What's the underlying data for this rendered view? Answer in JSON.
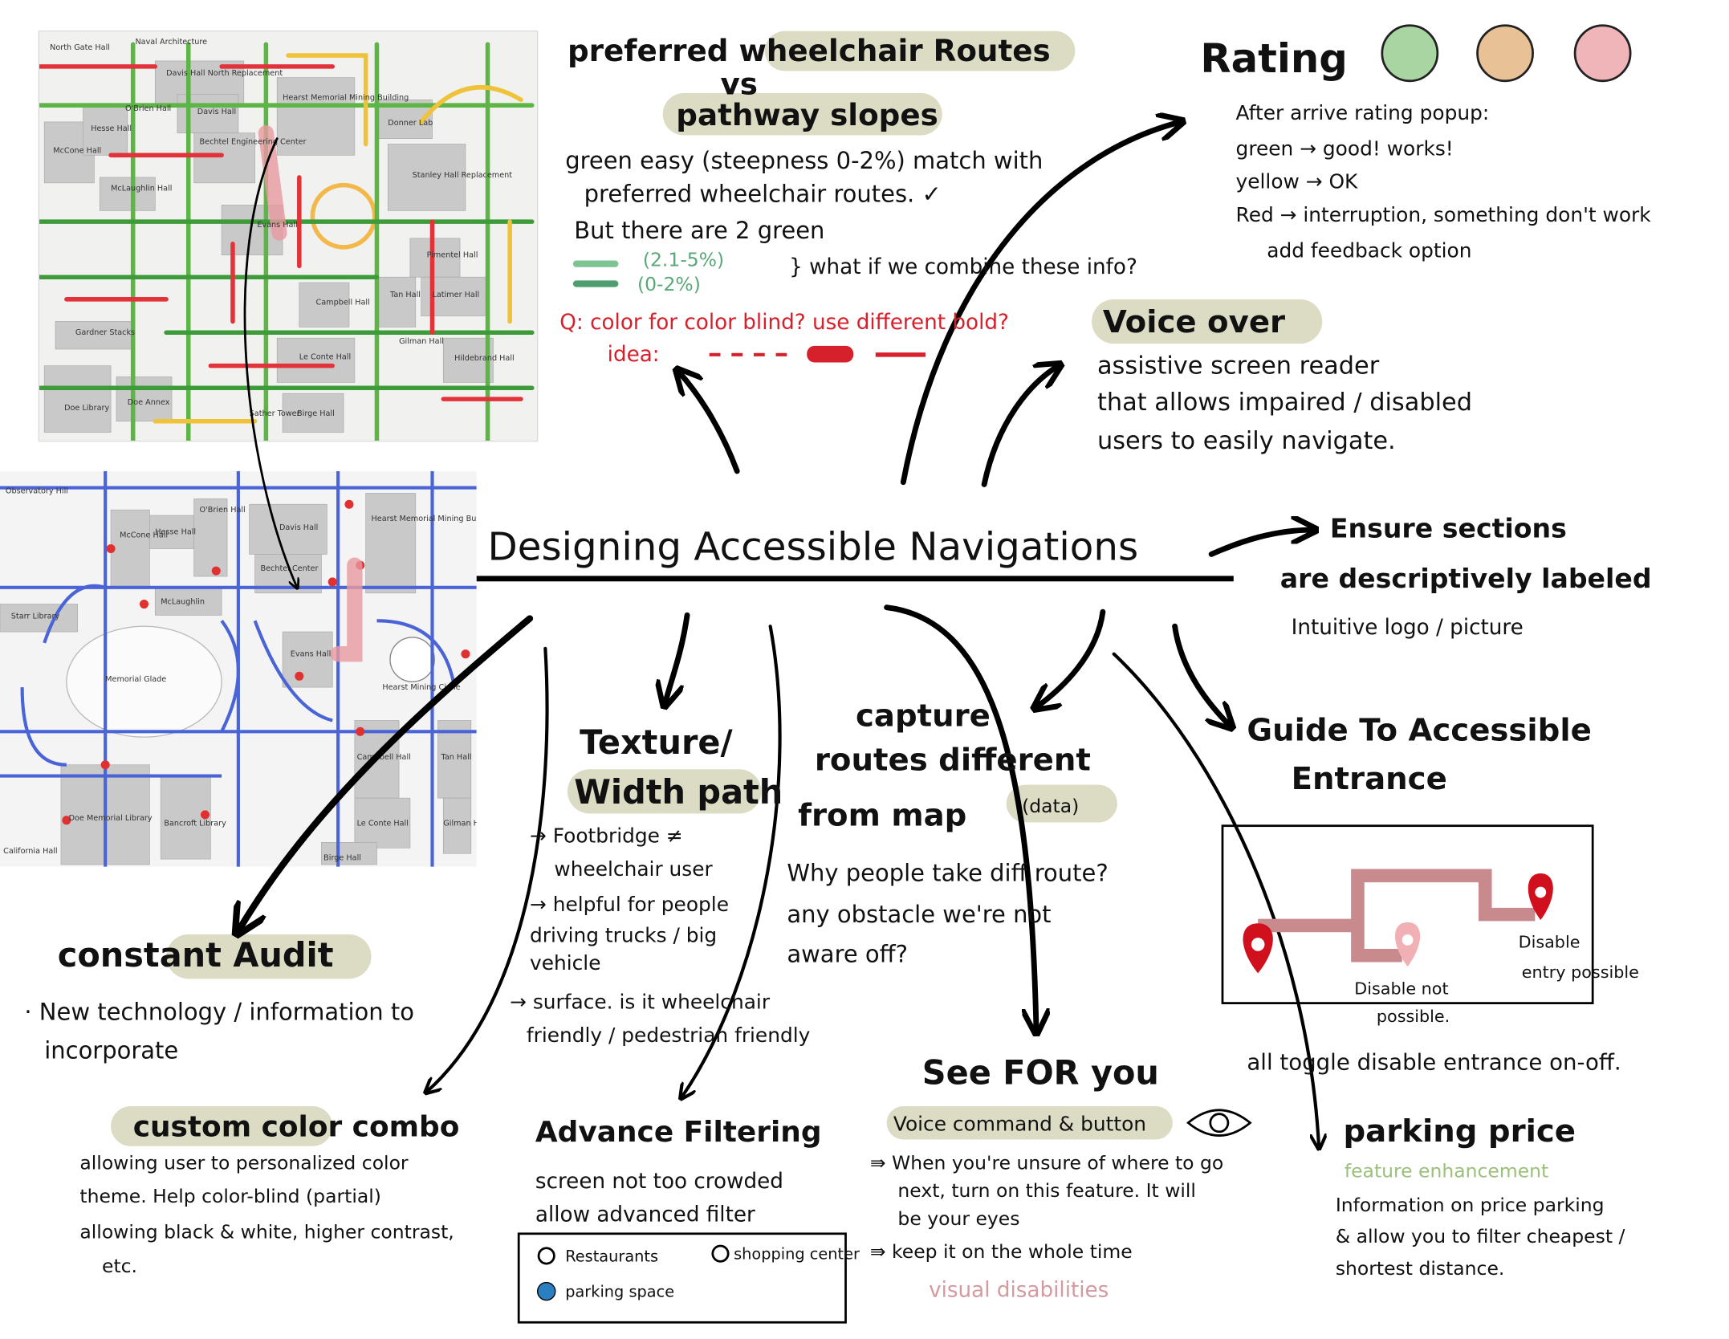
{
  "title": "Designing Accessible Navigations",
  "wheelchair": {
    "heading": [
      "preferred wheelchair Routes",
      "vs",
      "pathway slopes"
    ],
    "lines": [
      "green easy (steepness 0-2%) match with",
      "preferred wheelchair routes. ✓",
      "But there are 2 green"
    ],
    "legend": [
      "(2.1-5%)",
      "(0-2%)"
    ],
    "question": "} what if we combine these info?",
    "q": "Q: color for color blind? use different bold?",
    "idea": "idea:"
  },
  "rating": {
    "heading": "Rating",
    "lines": [
      "After arrive rating popup:",
      "green → good! works!",
      "yellow → OK",
      "Red → interruption, something don't work",
      "add feedback option"
    ]
  },
  "voice_over": {
    "heading": "Voice over",
    "lines": [
      "assistive screen reader",
      "that allows impaired / disabled",
      "users to easily navigate."
    ]
  },
  "ensure": {
    "heading": [
      "Ensure sections",
      "are descriptively labeled"
    ],
    "lines": [
      "Intuitive logo / picture"
    ]
  },
  "guide": {
    "heading": [
      "Guide To Accessible",
      "Entrance"
    ],
    "labels": [
      "Disable",
      "entry possible",
      "Disable not",
      "possible."
    ],
    "toggle": "all toggle disable entrance on-off."
  },
  "parking": {
    "heading": "parking price",
    "subtitle": "feature enhancement",
    "lines": [
      "Information on price parking",
      "& allow you to filter cheapest /",
      "shortest distance."
    ]
  },
  "see_for_you": {
    "heading": "See FOR you",
    "subtitle": "Voice command & button",
    "lines": [
      "⇛ When you're unsure of where to go",
      "next, turn on this feature. It will",
      "be your eyes",
      "⇛ keep it on the whole time"
    ],
    "note": "visual disabilities"
  },
  "capture": {
    "heading": [
      "capture",
      "routes different",
      "from map"
    ],
    "tag": "(data)",
    "lines": [
      "Why people take diff route?",
      "any obstacle we're not",
      "aware off?"
    ]
  },
  "texture": {
    "heading": [
      "Texture/",
      "Width path"
    ],
    "lines": [
      "→ Footbridge ≠",
      "wheelchair user",
      "→ helpful for people",
      "driving trucks / big",
      "vehicle",
      "→ surface. is it wheelchair",
      "friendly / pedestrian friendly"
    ]
  },
  "filtering": {
    "heading": "Advance Filtering",
    "lines": [
      "screen not too crowded",
      "allow advanced filter"
    ],
    "options": [
      "Restaurants",
      "shopping center",
      "parking space"
    ]
  },
  "custom": {
    "heading": "custom color combo",
    "lines": [
      "allowing user to personalized color",
      "theme. Help color-blind (partial)",
      "allowing black & white, higher contrast,",
      "etc."
    ]
  },
  "constant": {
    "heading": "constant Audit",
    "lines": [
      "· New technology / information to",
      "incorporate"
    ]
  },
  "map1": {
    "labels": [
      "North Gate Hall",
      "Naval Architecture",
      "Davis Hall North Replacement",
      "Hearst Memorial Mining Building",
      "Davis Hall",
      "Hesse Hall",
      "O'Brien Hall",
      "McCone Hall",
      "Bechtel Engineering Center",
      "Donner Lab",
      "McLaughlin Hall",
      "Stanley Hall Replacement",
      "Evans Hall",
      "Pimentel Hall",
      "Campbell Hall",
      "Tan Hall",
      "Latimer Hall",
      "Gardner Stacks",
      "Le Conte Hall",
      "Gilman Hall",
      "Hildebrand Hall",
      "Doe Library",
      "Doe Annex",
      "Sather Tower",
      "Birge Hall"
    ]
  },
  "map2": {
    "labels": [
      "Observatory Hill",
      "McCone Hall",
      "Hesse Hall",
      "O'Brien Hall",
      "Davis Hall",
      "Bechtel Center",
      "Hearst Memorial Mining Building",
      "McLaughlin",
      "Starr Library",
      "Evans Hall",
      "Hearst Mining Circle",
      "Memorial Glade",
      "Doe Memorial Library",
      "Bancroft Library",
      "Campbell Hall",
      "Tan Hall",
      "Le Conte Hall",
      "Gilman Hall",
      "Birge Hall",
      "California Hall"
    ]
  }
}
